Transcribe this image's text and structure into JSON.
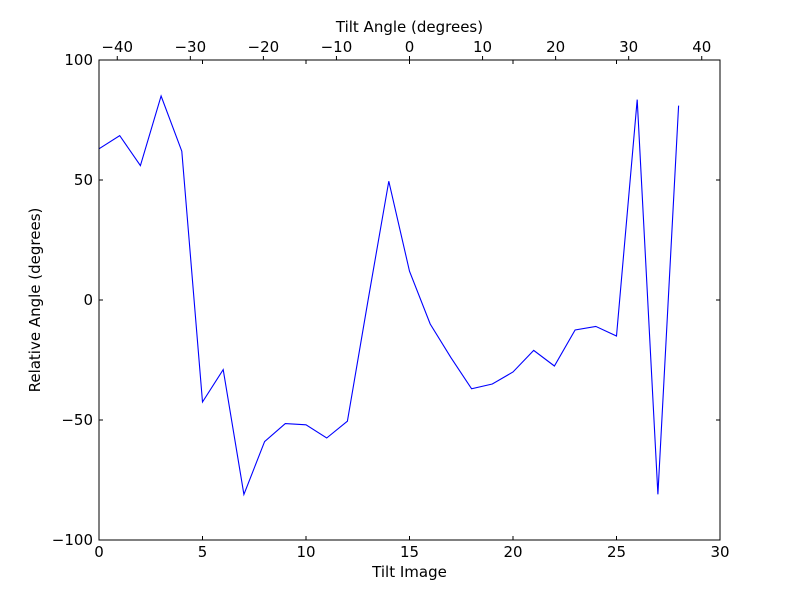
{
  "chart_data": {
    "type": "line",
    "title": "",
    "xlabel": "Tilt Image",
    "ylabel": "Relative Angle (degrees)",
    "top_xlabel": "Tilt Angle (degrees)",
    "xlim": [
      0,
      30
    ],
    "ylim": [
      -100,
      100
    ],
    "top_xlim": [
      -42.5,
      42.5
    ],
    "grid": false,
    "legend": "none",
    "x_ticks": [
      0,
      5,
      10,
      15,
      20,
      25,
      30
    ],
    "x_tick_labels": [
      "0",
      "5",
      "10",
      "15",
      "20",
      "25",
      "30"
    ],
    "y_ticks": [
      100,
      50,
      0,
      -50,
      -100
    ],
    "y_tick_labels": [
      "100",
      "50",
      "0",
      "−50",
      "−100"
    ],
    "top_ticks": [
      -40,
      -30,
      -20,
      -10,
      0,
      10,
      20,
      30,
      40
    ],
    "top_tick_labels": [
      "−40",
      "−30",
      "−20",
      "−10",
      "0",
      "10",
      "20",
      "30",
      "40"
    ],
    "series": [
      {
        "color": "#0000ff",
        "x": [
          0,
          1,
          2,
          3,
          4,
          5,
          6,
          7,
          8,
          9,
          10,
          11,
          12,
          13,
          14,
          15,
          16,
          17,
          18,
          19,
          20,
          21,
          22,
          23,
          24,
          25,
          26,
          27,
          28
        ],
        "y": [
          63,
          68.5,
          56,
          85,
          62,
          -42.5,
          -29,
          -81,
          -59,
          -51.5,
          -52,
          -57.5,
          -50.5,
          0,
          49.5,
          12,
          -10,
          -24,
          -37,
          -35,
          -30,
          -21,
          -27.5,
          -12.5,
          -11,
          -15,
          83.5,
          -81,
          81
        ]
      }
    ]
  }
}
